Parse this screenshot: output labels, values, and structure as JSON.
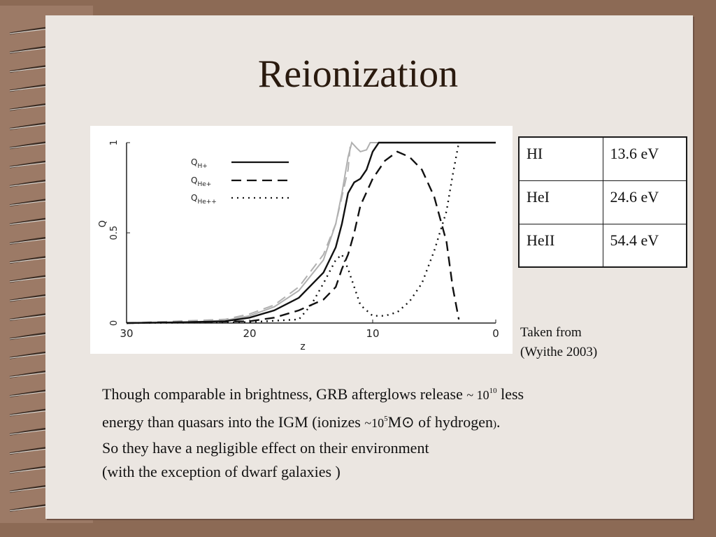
{
  "slide": {
    "title": "Reionization",
    "credit_line1": "Taken from",
    "credit_line2": "(Wyithe 2003)"
  },
  "table": {
    "rows": [
      {
        "ion": "HI",
        "energy": "13.6 eV"
      },
      {
        "ion": "HeI",
        "energy": "24.6 eV"
      },
      {
        "ion": "HeII",
        "energy": "54.4 eV"
      }
    ]
  },
  "body": {
    "line1_a": "Though comparable in brightness, GRB afterglows release",
    "line1_tilde": "~ 10",
    "line1_exp": "10",
    "line1_b": "less",
    "line2_a": "energy than quasars into the IGM (ionizes",
    "line2_tilde": "~10",
    "line2_exp": "5",
    "line2_b": "M⊙ of hydrogen",
    "line2_paren": ")",
    "line2_end": ".",
    "line3": "So they have a negligible effect on their environment",
    "line4": "(with the exception of dwarf galaxies )"
  },
  "chart_data": {
    "type": "line",
    "xlabel": "z",
    "ylabel": "Q",
    "xlim": [
      30,
      0
    ],
    "ylim": [
      0,
      1
    ],
    "x_ticks": [
      30,
      20,
      10,
      0
    ],
    "y_ticks": [
      {
        "value": 0,
        "label": "0"
      },
      {
        "value": 0.5,
        "label": "0.5"
      },
      {
        "value": 1,
        "label": "1"
      }
    ],
    "legend": [
      "Q_H+",
      "Q_He+",
      "Q_He++"
    ],
    "legend_labels": [
      {
        "main": "Q",
        "sub": "H+"
      },
      {
        "main": "Q",
        "sub": "He+"
      },
      {
        "main": "Q",
        "sub": "He++"
      }
    ],
    "legend_placement": "upper-left",
    "series": [
      {
        "name": "Q_H+",
        "style": "solid",
        "color": "#111111",
        "points": [
          [
            30,
            0
          ],
          [
            25,
            0.005
          ],
          [
            22,
            0.01
          ],
          [
            20,
            0.03
          ],
          [
            18,
            0.07
          ],
          [
            16,
            0.14
          ],
          [
            14,
            0.28
          ],
          [
            13,
            0.42
          ],
          [
            12.5,
            0.55
          ],
          [
            12,
            0.72
          ],
          [
            11.5,
            0.78
          ],
          [
            11,
            0.8
          ],
          [
            10.5,
            0.85
          ],
          [
            10,
            0.95
          ],
          [
            9.5,
            1.0
          ],
          [
            0,
            1.0
          ]
        ]
      },
      {
        "name": "Q_He+",
        "style": "dashed",
        "color": "#111111",
        "points": [
          [
            30,
            0
          ],
          [
            20,
            0.01
          ],
          [
            18,
            0.03
          ],
          [
            16,
            0.07
          ],
          [
            14,
            0.13
          ],
          [
            13,
            0.2
          ],
          [
            12.5,
            0.3
          ],
          [
            12,
            0.38
          ],
          [
            11.5,
            0.5
          ],
          [
            11,
            0.65
          ],
          [
            10,
            0.8
          ],
          [
            9,
            0.9
          ],
          [
            8,
            0.95
          ],
          [
            7,
            0.92
          ],
          [
            6,
            0.85
          ],
          [
            5,
            0.7
          ],
          [
            4,
            0.45
          ],
          [
            3.5,
            0.2
          ],
          [
            3,
            0.02
          ]
        ]
      },
      {
        "name": "Q_He++",
        "style": "dotted",
        "color": "#111111",
        "points": [
          [
            30,
            0
          ],
          [
            20,
            0.005
          ],
          [
            16,
            0.02
          ],
          [
            15,
            0.1
          ],
          [
            14,
            0.22
          ],
          [
            13,
            0.35
          ],
          [
            12.5,
            0.38
          ],
          [
            12,
            0.3
          ],
          [
            11.5,
            0.2
          ],
          [
            11,
            0.1
          ],
          [
            10,
            0.04
          ],
          [
            9,
            0.04
          ],
          [
            8,
            0.06
          ],
          [
            7,
            0.12
          ],
          [
            6,
            0.22
          ],
          [
            5,
            0.4
          ],
          [
            4,
            0.62
          ],
          [
            3.5,
            0.82
          ],
          [
            3,
            1.0
          ]
        ]
      },
      {
        "name": "",
        "style": "solid",
        "color": "#b0b0b0",
        "points": [
          [
            30,
            0
          ],
          [
            25,
            0.005
          ],
          [
            22,
            0.015
          ],
          [
            20,
            0.04
          ],
          [
            18,
            0.09
          ],
          [
            16,
            0.18
          ],
          [
            14,
            0.35
          ],
          [
            13,
            0.55
          ],
          [
            12.5,
            0.72
          ],
          [
            12,
            0.92
          ],
          [
            11.7,
            1.0
          ],
          [
            11.3,
            0.97
          ],
          [
            11,
            0.95
          ],
          [
            10.5,
            0.96
          ],
          [
            10.2,
            1.0
          ],
          [
            0,
            1.0
          ]
        ]
      },
      {
        "name": "",
        "style": "dashed",
        "color": "#b0b0b0",
        "points": [
          [
            30,
            0
          ],
          [
            22,
            0.02
          ],
          [
            20,
            0.05
          ],
          [
            18,
            0.1
          ],
          [
            16,
            0.2
          ],
          [
            14,
            0.38
          ],
          [
            13,
            0.55
          ],
          [
            12.5,
            0.7
          ],
          [
            12,
            0.85
          ],
          [
            11.8,
            1.0
          ]
        ]
      }
    ]
  },
  "colors": {
    "background": "#8c6a55",
    "slide": "#ebe6e1",
    "title": "#2a1a0e",
    "text": "#111111"
  },
  "icons": {
    "binding": "spiral-ring-icon"
  }
}
